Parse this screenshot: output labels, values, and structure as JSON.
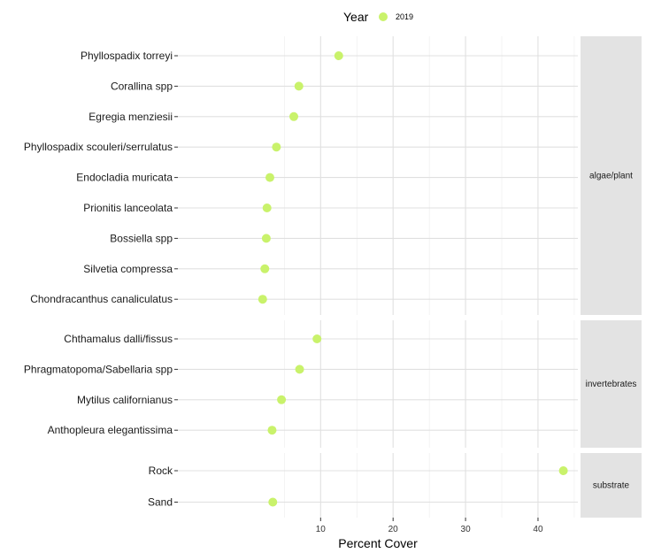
{
  "chart_data": {
    "type": "scatter",
    "title": "",
    "xlabel": "Percent Cover",
    "ylabel": "",
    "xlim": [
      -9.7,
      45.5
    ],
    "xticks": [
      10,
      20,
      30,
      40
    ],
    "legend": {
      "title": "Year",
      "position": "top",
      "entries": [
        {
          "label": "2019",
          "color": "#c9f26b"
        }
      ]
    },
    "colors": {
      "point": "#c9f26b",
      "panel_bg": "#ffffff",
      "grid": "#e0e0e0",
      "strip_bg": "#e3e3e3"
    },
    "panels": [
      {
        "strip": "algae/plant",
        "points": [
          {
            "label": "Phyllospadix torreyi",
            "x": 12.5
          },
          {
            "label": "Corallina spp",
            "x": 7.0
          },
          {
            "label": "Egregia menziesii",
            "x": 6.3
          },
          {
            "label": "Phyllospadix scouleri/serrulatus",
            "x": 3.9
          },
          {
            "label": "Endocladia muricata",
            "x": 3.0
          },
          {
            "label": "Prionitis lanceolata",
            "x": 2.6
          },
          {
            "label": "Bossiella spp",
            "x": 2.5
          },
          {
            "label": "Silvetia compressa",
            "x": 2.3
          },
          {
            "label": "Chondracanthus canaliculatus",
            "x": 2.0
          }
        ]
      },
      {
        "strip": "invertebrates",
        "points": [
          {
            "label": "Chthamalus dalli/fissus",
            "x": 9.5
          },
          {
            "label": "Phragmatopoma/Sabellaria spp",
            "x": 7.1
          },
          {
            "label": "Mytilus californianus",
            "x": 4.6
          },
          {
            "label": "Anthopleura elegantissima",
            "x": 3.3
          }
        ]
      },
      {
        "strip": "substrate",
        "points": [
          {
            "label": "Rock",
            "x": 43.5
          },
          {
            "label": "Sand",
            "x": 3.4
          }
        ]
      }
    ]
  }
}
